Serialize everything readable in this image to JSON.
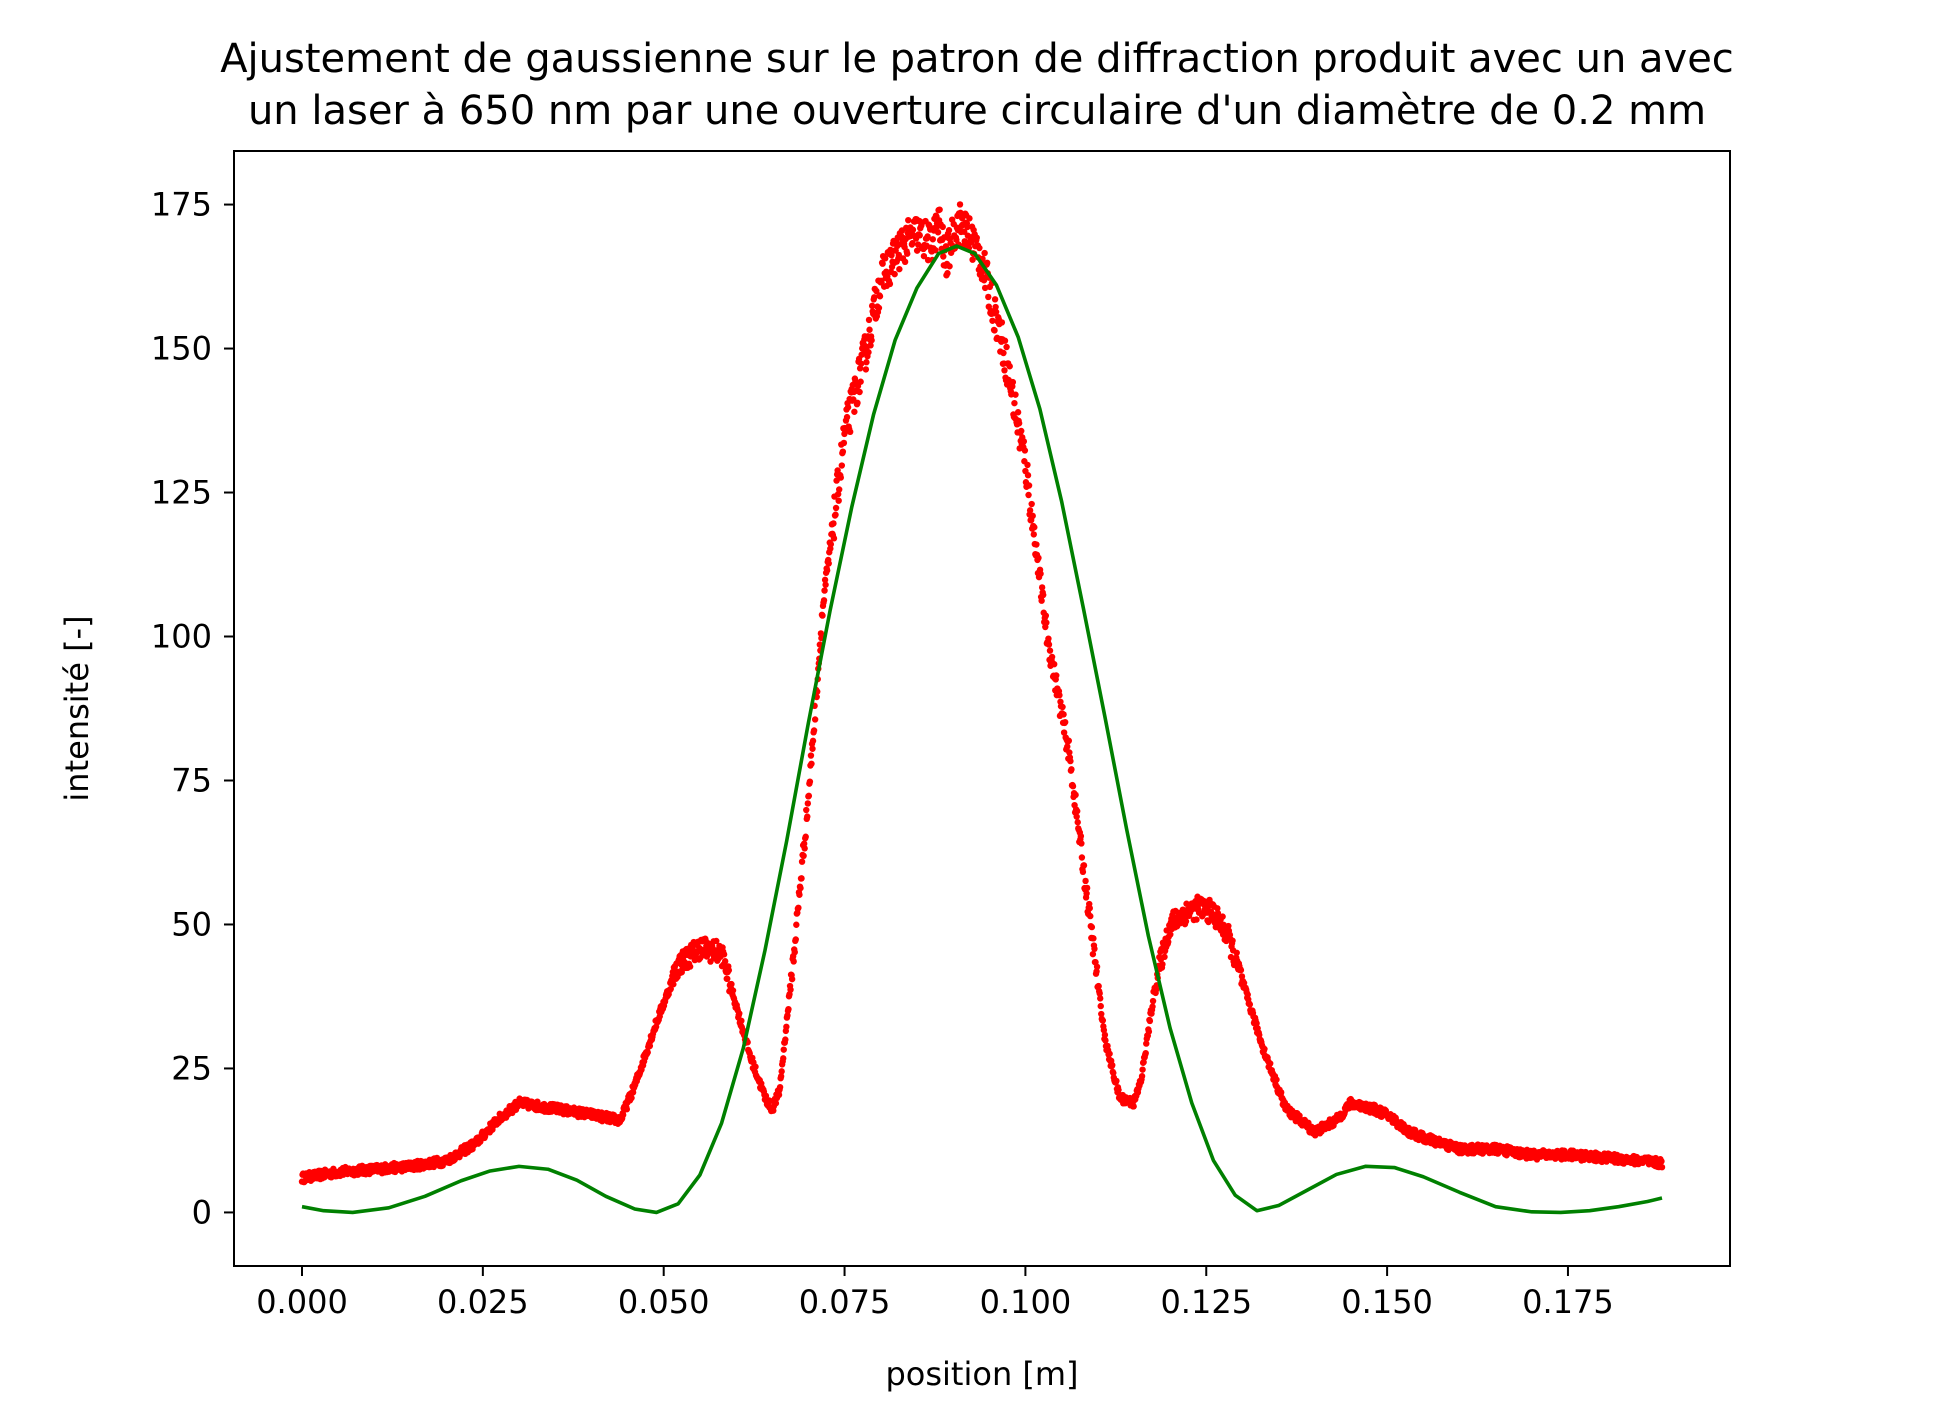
{
  "chart_data": {
    "type": "line",
    "title": "Ajustement de gaussienne sur le patron de diffraction produit avec un avec un laser à 650 nm par une ouverture circulaire d'un diamètre de 0.2 mm",
    "title_lines": [
      "Ajustement de gaussienne sur le patron de diffraction produit avec un avec",
      "un laser à 650 nm par une ouverture circulaire d'un diamètre de 0.2 mm"
    ],
    "xlabel": "position [m]",
    "ylabel": "intensité [-]",
    "xlim": [
      -0.0094,
      0.1974
    ],
    "ylim": [
      -9.3,
      184.3
    ],
    "x_ticks": [
      0.0,
      0.025,
      0.05,
      0.075,
      0.1,
      0.125,
      0.15,
      0.175
    ],
    "x_tick_labels": [
      "0.000",
      "0.025",
      "0.050",
      "0.075",
      "0.100",
      "0.125",
      "0.150",
      "0.175"
    ],
    "y_ticks": [
      0,
      25,
      50,
      75,
      100,
      125,
      150,
      175
    ],
    "y_tick_labels": [
      "0",
      "25",
      "50",
      "75",
      "100",
      "125",
      "150",
      "175"
    ],
    "grid": false,
    "legend": "none",
    "series": [
      {
        "kind": "scatter",
        "color": "#ff0000",
        "x": [
          0.0,
          0.005,
          0.01,
          0.015,
          0.02,
          0.024,
          0.027,
          0.03,
          0.035,
          0.04,
          0.044,
          0.046,
          0.049,
          0.052,
          0.055,
          0.058,
          0.06,
          0.062,
          0.064,
          0.065,
          0.066,
          0.068,
          0.07,
          0.072,
          0.075,
          0.078,
          0.08,
          0.083,
          0.085,
          0.087,
          0.088,
          0.089,
          0.09,
          0.091,
          0.092,
          0.093,
          0.094,
          0.095,
          0.097,
          0.1,
          0.103,
          0.106,
          0.109,
          0.111,
          0.113,
          0.115,
          0.116,
          0.118,
          0.12,
          0.122,
          0.124,
          0.126,
          0.128,
          0.13,
          0.133,
          0.136,
          0.14,
          0.143,
          0.145,
          0.148,
          0.15,
          0.153,
          0.155,
          0.16,
          0.165,
          0.17,
          0.175,
          0.18,
          0.185,
          0.188
        ],
        "y": [
          6,
          7,
          7.5,
          8,
          9,
          12,
          16,
          19,
          18,
          17,
          16,
          22,
          33,
          43,
          46,
          45,
          36,
          27,
          20,
          18,
          21,
          45,
          72,
          105,
          135,
          150,
          162,
          168,
          170,
          168,
          172,
          165,
          170,
          172,
          170,
          168,
          165,
          160,
          150,
          130,
          100,
          80,
          50,
          30,
          20,
          19,
          23,
          40,
          50,
          52,
          53,
          52,
          48,
          40,
          28,
          18,
          14,
          16,
          19,
          18,
          17,
          14,
          13,
          11,
          11,
          10,
          10,
          9.5,
          9,
          8.5
        ]
      },
      {
        "kind": "line",
        "color": "#008000",
        "x": [
          0.0,
          0.003,
          0.007,
          0.012,
          0.017,
          0.022,
          0.026,
          0.03,
          0.034,
          0.038,
          0.042,
          0.046,
          0.049,
          0.052,
          0.055,
          0.058,
          0.061,
          0.064,
          0.067,
          0.07,
          0.073,
          0.076,
          0.079,
          0.082,
          0.085,
          0.088,
          0.0905,
          0.093,
          0.096,
          0.099,
          0.102,
          0.105,
          0.108,
          0.111,
          0.114,
          0.117,
          0.12,
          0.123,
          0.126,
          0.129,
          0.132,
          0.135,
          0.139,
          0.143,
          0.147,
          0.151,
          0.155,
          0.16,
          0.165,
          0.17,
          0.174,
          0.178,
          0.182,
          0.186,
          0.188
        ],
        "y": [
          1.0,
          0.3,
          0.0,
          0.8,
          2.8,
          5.5,
          7.2,
          8.0,
          7.5,
          5.6,
          2.8,
          0.6,
          0.0,
          1.5,
          6.5,
          15.5,
          28.5,
          45.5,
          64.5,
          85,
          104.5,
          122.5,
          138.5,
          151.5,
          160.5,
          166.5,
          167.8,
          166.5,
          161,
          152,
          139.5,
          123.5,
          105,
          86,
          66.5,
          48,
          32,
          19,
          9,
          3,
          0.3,
          1.2,
          3.9,
          6.6,
          8.0,
          7.8,
          6.2,
          3.5,
          1.0,
          0.1,
          0.0,
          0.3,
          1.0,
          1.9,
          2.5
        ]
      }
    ]
  }
}
